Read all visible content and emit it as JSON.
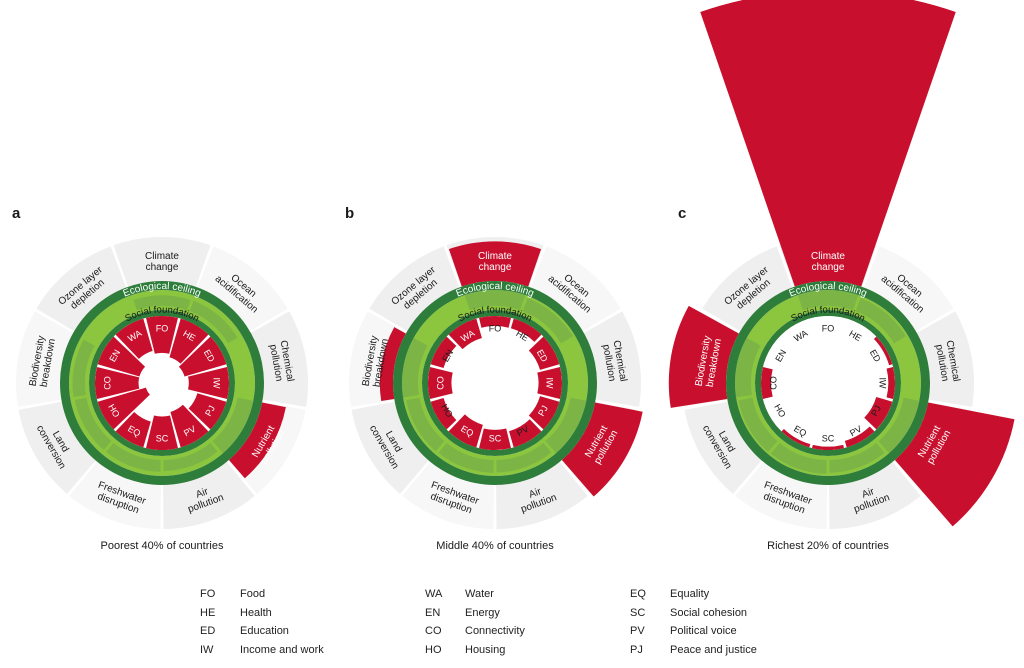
{
  "panels": [
    {
      "letter": "a",
      "caption": "Poorest 40% of countries",
      "boundary_levels": {
        "climate": 0.25,
        "ocean": 0.3,
        "chemical": 0.0,
        "nutrient": 1.55,
        "air": 0.3,
        "freshwater": 0.4,
        "land": 0.4,
        "biodiversity": 0.5,
        "ozone": 0.0
      },
      "social_levels": {
        "FO": 0.55,
        "HE": 0.6,
        "ED": 0.65,
        "IW": 0.6,
        "PJ": 0.45,
        "PV": 0.55,
        "SC": 0.5,
        "EQ": 0.4,
        "HO": 0.75,
        "CO": 0.65,
        "EN": 0.65,
        "WA": 0.5
      }
    },
    {
      "letter": "b",
      "caption": "Middle 40% of countries",
      "boundary_levels": {
        "climate": 1.9,
        "ocean": 0.7,
        "chemical": 0.0,
        "nutrient": 2.1,
        "air": 0.5,
        "freshwater": 0.55,
        "land": 0.65,
        "biodiversity": 1.3,
        "ozone": 0.0
      },
      "social_levels": {
        "FO": 0.15,
        "HE": 0.15,
        "ED": 0.3,
        "IW": 0.35,
        "PJ": 0.3,
        "PV": 0.25,
        "SC": 0.3,
        "EQ": 0.35,
        "HO": 0.2,
        "CO": 0.35,
        "EN": 0.2,
        "WA": 0.3
      }
    },
    {
      "letter": "c",
      "caption": "Richest 20% of countries",
      "boundary_levels": {
        "climate": 7.6,
        "ocean": 0.7,
        "chemical": 0.0,
        "nutrient": 3.0,
        "air": 0.55,
        "freshwater": 0.7,
        "land": 0.75,
        "biodiversity": 2.3,
        "ozone": 0.0
      },
      "social_levels": {
        "FO": 0.0,
        "HE": 0.0,
        "ED": 0.05,
        "IW": 0.1,
        "PJ": 0.25,
        "PV": 0.1,
        "SC": 0.05,
        "EQ": 0.05,
        "HO": 0.0,
        "CO": 0.15,
        "EN": 0.0,
        "WA": 0.0
      }
    }
  ],
  "ring_labels": {
    "ecological_ceiling": "Ecological ceiling",
    "social_foundation": "Social foundation"
  },
  "boundaries": [
    {
      "key": "climate",
      "lines": [
        "Climate",
        "change"
      ]
    },
    {
      "key": "ocean",
      "lines": [
        "Ocean",
        "acidification"
      ]
    },
    {
      "key": "chemical",
      "lines": [
        "Chemical",
        "pollution"
      ]
    },
    {
      "key": "nutrient",
      "lines": [
        "Nutrient",
        "pollution"
      ]
    },
    {
      "key": "air",
      "lines": [
        "Air",
        "pollution"
      ]
    },
    {
      "key": "freshwater",
      "lines": [
        "Freshwater",
        "disruption"
      ]
    },
    {
      "key": "land",
      "lines": [
        "Land",
        "conversion"
      ]
    },
    {
      "key": "biodiversity",
      "lines": [
        "Biodiversity",
        "breakdown"
      ]
    },
    {
      "key": "ozone",
      "lines": [
        "Ozone layer",
        "depletion"
      ]
    }
  ],
  "social_codes": [
    "FO",
    "HE",
    "ED",
    "IW",
    "PJ",
    "PV",
    "SC",
    "EQ",
    "HO",
    "CO",
    "EN",
    "WA"
  ],
  "legend": [
    [
      {
        "code": "FO",
        "name": "Food"
      },
      {
        "code": "HE",
        "name": "Health"
      },
      {
        "code": "ED",
        "name": "Education"
      },
      {
        "code": "IW",
        "name": "Income and work"
      }
    ],
    [
      {
        "code": "WA",
        "name": "Water"
      },
      {
        "code": "EN",
        "name": "Energy"
      },
      {
        "code": "CO",
        "name": "Connectivity"
      },
      {
        "code": "HO",
        "name": "Housing"
      }
    ],
    [
      {
        "code": "EQ",
        "name": "Equality"
      },
      {
        "code": "SC",
        "name": "Social cohesion"
      },
      {
        "code": "PV",
        "name": "Political voice"
      },
      {
        "code": "PJ",
        "name": "Peace and justice"
      }
    ]
  ],
  "colors": {
    "overshoot": "#c8102e",
    "ceiling_ring": "#2e7d3a",
    "safe_space": "#8cc63f",
    "wedge_bg": "#ececec",
    "shortfall": "#c8102e"
  }
}
